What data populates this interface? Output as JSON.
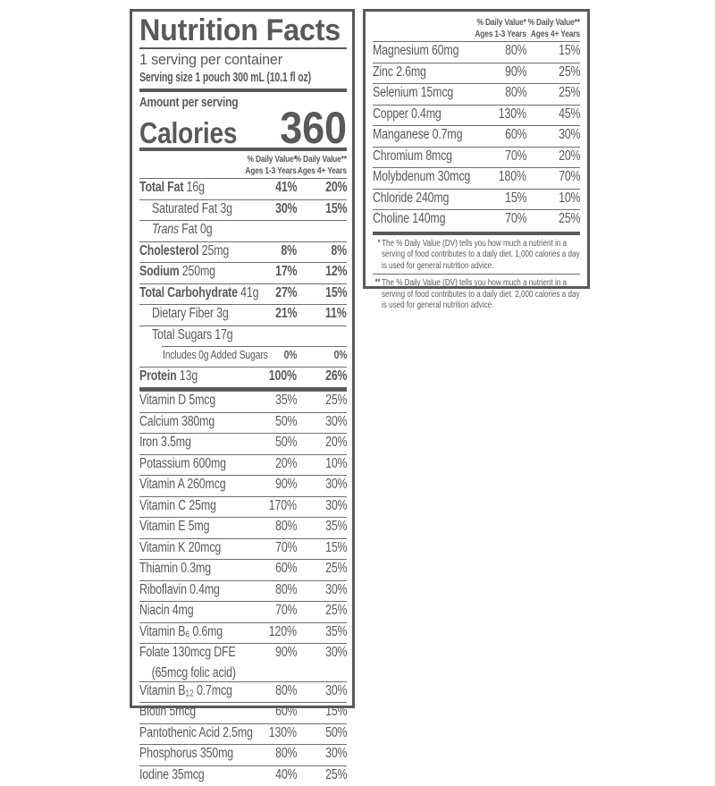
{
  "colors": {
    "ink": "#58595b",
    "hairline": "#6d6e71",
    "background": "#ffffff"
  },
  "dv_header": {
    "col1_line1": "% Daily Value*",
    "col1_line2": "Ages 1-3 Years",
    "col2_line1": "% Daily Value**",
    "col2_line2": "Ages 4+ Years"
  },
  "left_panel": {
    "title": "Nutrition Facts",
    "servings_per_container": "1 serving per container",
    "serving_size": "Serving size 1 pouch 300 mL (10.1 fl oz)",
    "amount_label": "Amount per serving",
    "calories_label": "Calories",
    "calories_value": "360",
    "macros": [
      {
        "b": "Total Fat",
        "t": " 16g",
        "v1": "41%",
        "v2": "20%",
        "strong": true
      },
      {
        "t": "Saturated Fat 3g",
        "v1": "30%",
        "v2": "15%",
        "level": 1,
        "strong": true
      },
      {
        "i": "Trans",
        "t": " Fat 0g",
        "level": 1
      },
      {
        "b": "Cholesterol",
        "t": " 25mg",
        "v1": "8%",
        "v2": "8%",
        "strong": true
      },
      {
        "b": "Sodium",
        "t": " 250mg",
        "v1": "17%",
        "v2": "12%",
        "strong": true
      },
      {
        "b": "Total Carbohydrate",
        "t": " 41g",
        "v1": "27%",
        "v2": "15%",
        "strong": true
      },
      {
        "t": "Dietary Fiber 3g",
        "v1": "21%",
        "v2": "11%",
        "level": 1,
        "strong": true
      },
      {
        "t": "Total Sugars 17g",
        "level": 1
      },
      {
        "t": "Includes 0g Added Sugars",
        "v1": "0%",
        "v2": "0%",
        "level": 2,
        "small": true,
        "strong": true
      },
      {
        "b": "Protein",
        "t": " 13g",
        "v1": "100%",
        "v2": "26%",
        "strong": true
      }
    ],
    "vitamins": [
      {
        "t": "Vitamin D 5mcg",
        "v1": "35%",
        "v2": "25%"
      },
      {
        "t": "Calcium 380mg",
        "v1": "50%",
        "v2": "30%"
      },
      {
        "t": "Iron 3.5mg",
        "v1": "50%",
        "v2": "20%"
      },
      {
        "t": "Potassium 600mg",
        "v1": "20%",
        "v2": "10%"
      },
      {
        "t": "Vitamin A 260mcg",
        "v1": "90%",
        "v2": "30%"
      },
      {
        "t": "Vitamin C 25mg",
        "v1": "170%",
        "v2": "30%"
      },
      {
        "t": "Vitamin E 5mg",
        "v1": "80%",
        "v2": "35%"
      },
      {
        "t": "Vitamin K 20mcg",
        "v1": "70%",
        "v2": "15%"
      },
      {
        "t": "Thiamin 0.3mg",
        "v1": "60%",
        "v2": "25%"
      },
      {
        "t": "Riboflavin 0.4mg",
        "v1": "80%",
        "v2": "30%"
      },
      {
        "t": "Niacin 4mg",
        "v1": "70%",
        "v2": "25%"
      },
      {
        "t": "Vitamin B",
        "sub": "6",
        "post": " 0.6mg",
        "v1": "120%",
        "v2": "35%"
      },
      {
        "t": "Folate 130mcg DFE",
        "t2": "(65mcg folic acid)",
        "v1": "90%",
        "v2": "30%"
      },
      {
        "t": "Vitamin B",
        "sub": "12",
        "post": " 0.7mcg",
        "v1": "80%",
        "v2": "30%"
      },
      {
        "t": "Biotin 5mcg",
        "v1": "60%",
        "v2": "15%"
      },
      {
        "t": "Pantothenic Acid 2.5mg",
        "v1": "130%",
        "v2": "50%"
      },
      {
        "t": "Phosphorus 350mg",
        "v1": "80%",
        "v2": "30%"
      },
      {
        "t": "Iodine 35mcg",
        "v1": "40%",
        "v2": "25%"
      }
    ]
  },
  "right_panel": {
    "minerals": [
      {
        "t": "Magnesium 60mg",
        "v1": "80%",
        "v2": "15%"
      },
      {
        "t": "Zinc 2.6mg",
        "v1": "90%",
        "v2": "25%"
      },
      {
        "t": "Selenium 15mcg",
        "v1": "80%",
        "v2": "25%"
      },
      {
        "t": "Copper 0.4mg",
        "v1": "130%",
        "v2": "45%"
      },
      {
        "t": "Manganese 0.7mg",
        "v1": "60%",
        "v2": "30%"
      },
      {
        "t": "Chromium 8mcg",
        "v1": "70%",
        "v2": "20%"
      },
      {
        "t": "Molybdenum 30mcg",
        "v1": "180%",
        "v2": "70%"
      },
      {
        "t": "Chloride 240mg",
        "v1": "15%",
        "v2": "10%"
      },
      {
        "t": "Choline 140mg",
        "v1": "70%",
        "v2": "25%"
      }
    ],
    "footnotes": [
      {
        "mark": "*",
        "text": "The % Daily Value (DV) tells you how much a nutrient in a serving of food contributes to a daily diet. 1,000 calories a day is used for general nutrition advice."
      },
      {
        "mark": "**",
        "text": "The % Daily Value (DV) tells you how much a nutrient in a serving of food contributes to a daily diet. 2,000 calories a day is used for general nutrition advice."
      }
    ]
  }
}
